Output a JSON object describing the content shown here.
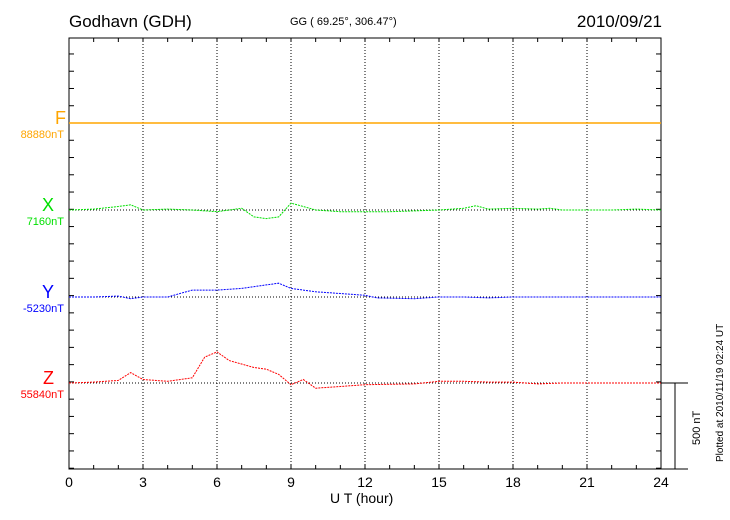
{
  "header": {
    "station": "Godhavn (GDH)",
    "coords": "GG ( 69.25°, 306.47°)",
    "date": "2010/09/21"
  },
  "footer": {
    "plotted": "Plotted at 2010/11/19 02:24 UT",
    "scale_label": "500 nT"
  },
  "chart_data": {
    "type": "line",
    "title": "Godhavn (GDH)",
    "xlabel": "U T (hour)",
    "ylabel": "",
    "xlim": [
      0,
      24
    ],
    "xticks": [
      "0",
      "3",
      "6",
      "9",
      "12",
      "15",
      "18",
      "21",
      "24"
    ],
    "scale_nT": 500,
    "grid": true,
    "series": [
      {
        "name": "F",
        "baseline_label": "88880nT",
        "color": "#ffa500",
        "x": [
          0,
          24
        ],
        "offset_nT": [
          0,
          0
        ]
      },
      {
        "name": "X",
        "baseline_label": "7160nT",
        "color": "#00e000",
        "x": [
          0,
          1,
          2,
          2.5,
          3,
          4,
          5,
          6,
          7,
          7.5,
          8,
          8.5,
          9,
          9.5,
          10,
          11,
          12,
          13,
          14,
          15,
          16,
          16.5,
          17,
          18,
          19,
          19.5,
          20,
          21,
          22,
          23,
          24
        ],
        "offset_nT": [
          0,
          5,
          20,
          30,
          0,
          5,
          0,
          -10,
          10,
          -40,
          -50,
          -40,
          40,
          20,
          0,
          -10,
          -10,
          -10,
          -5,
          0,
          10,
          25,
          5,
          10,
          5,
          10,
          0,
          0,
          0,
          5,
          0
        ]
      },
      {
        "name": "Y",
        "baseline_label": "-5230nT",
        "color": "#0000ff",
        "x": [
          0,
          1,
          2,
          2.5,
          3,
          4,
          4.5,
          5,
          6,
          7,
          8,
          8.5,
          9,
          9.5,
          10,
          11,
          12,
          12.5,
          14,
          15,
          16,
          17,
          18,
          19,
          20,
          22,
          24
        ],
        "offset_nT": [
          0,
          0,
          5,
          -10,
          0,
          0,
          20,
          40,
          40,
          50,
          70,
          80,
          50,
          40,
          30,
          20,
          10,
          -5,
          -10,
          0,
          0,
          -5,
          0,
          0,
          0,
          0,
          0
        ]
      },
      {
        "name": "Z",
        "baseline_label": "55840nT",
        "color": "#ff0000",
        "x": [
          0,
          1,
          2,
          2.5,
          3,
          4,
          5,
          5.5,
          6,
          6.5,
          7.5,
          8,
          8.5,
          9,
          9.5,
          10,
          11,
          12,
          14,
          15,
          16,
          17,
          18,
          19,
          20,
          22,
          24
        ],
        "offset_nT": [
          0,
          5,
          15,
          60,
          20,
          10,
          30,
          150,
          180,
          130,
          90,
          80,
          50,
          -10,
          20,
          -30,
          -20,
          -10,
          -5,
          10,
          10,
          5,
          5,
          -5,
          0,
          0,
          0
        ]
      }
    ]
  }
}
